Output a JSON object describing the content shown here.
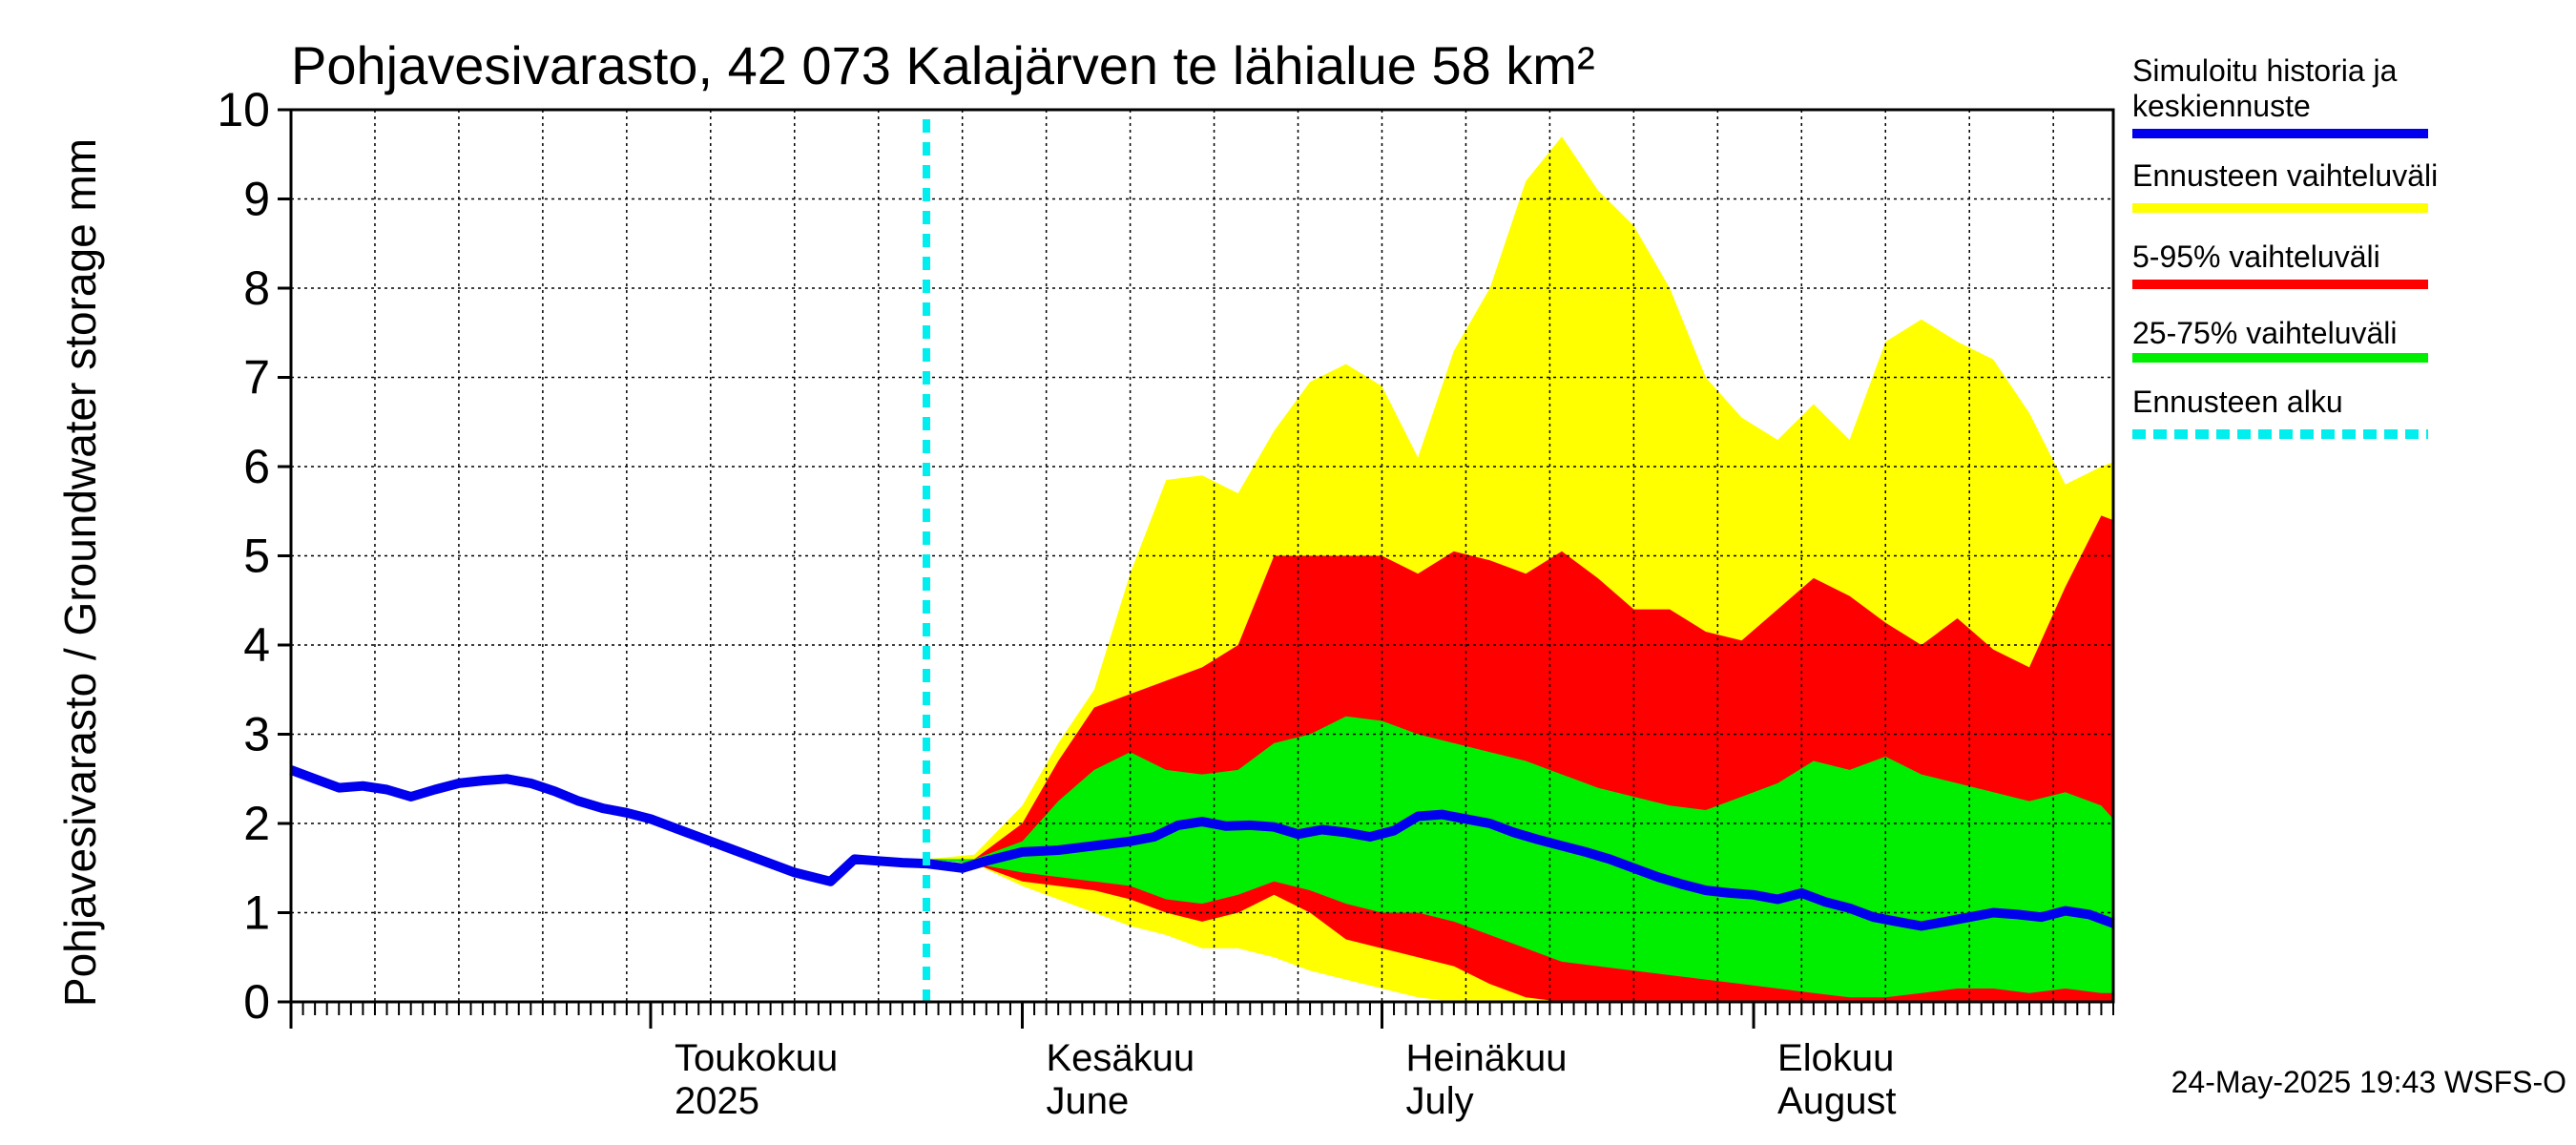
{
  "chart_data": {
    "type": "area",
    "title": "Pohjavesivarasto, 42 073 Kalajärven te lähialue 58 km²",
    "ylabel": "Pohjavesivarasto / Groundwater storage   mm",
    "ylim": [
      0,
      10
    ],
    "yticks": [
      "0",
      "1",
      "2",
      "3",
      "4",
      "5",
      "6",
      "7",
      "8",
      "9",
      "10"
    ],
    "x_start": "2025-04-01",
    "x_end": "2025-08-31",
    "grid": true,
    "forecast_start": "2025-05-24",
    "month_labels": [
      {
        "date": "2025-05-01",
        "fi": "Toukokuu",
        "en": "2025"
      },
      {
        "date": "2025-06-01",
        "fi": "Kesäkuu",
        "en": "June"
      },
      {
        "date": "2025-07-01",
        "fi": "Heinäkuu",
        "en": "July"
      },
      {
        "date": "2025-08-01",
        "fi": "Elokuu",
        "en": "August"
      }
    ],
    "legend": [
      {
        "label": "Simuloitu historia ja keskiennuste",
        "color": "#0000ee"
      },
      {
        "label": "Ennusteen vaihteluväli",
        "color": "#ffff00"
      },
      {
        "label": "5-95% vaihteluväli",
        "color": "#ff0000"
      },
      {
        "label": "25-75% vaihteluväli",
        "color": "#00ee00"
      },
      {
        "label": "Ennusteen alku",
        "color": "#00eeee"
      }
    ],
    "series": [
      {
        "name": "Ennusteen vaihteluväli",
        "color": "#ffff00",
        "points": [
          [
            "2025-05-24",
            1.6,
            1.6
          ],
          [
            "2025-05-28",
            1.55,
            1.65
          ],
          [
            "2025-06-01",
            1.3,
            2.2
          ],
          [
            "2025-06-04",
            1.15,
            2.9
          ],
          [
            "2025-06-07",
            1.0,
            3.5
          ],
          [
            "2025-06-10",
            0.85,
            4.8
          ],
          [
            "2025-06-13",
            0.75,
            5.85
          ],
          [
            "2025-06-16",
            0.6,
            5.9
          ],
          [
            "2025-06-19",
            0.6,
            5.7
          ],
          [
            "2025-06-22",
            0.5,
            6.4
          ],
          [
            "2025-06-25",
            0.35,
            6.95
          ],
          [
            "2025-06-28",
            0.25,
            7.15
          ],
          [
            "2025-07-01",
            0.15,
            6.9
          ],
          [
            "2025-07-04",
            0.05,
            6.1
          ],
          [
            "2025-07-07",
            0.0,
            7.3
          ],
          [
            "2025-07-10",
            0.0,
            8.0
          ],
          [
            "2025-07-13",
            0.0,
            9.2
          ],
          [
            "2025-07-16",
            0.0,
            9.7
          ],
          [
            "2025-07-19",
            0.0,
            9.1
          ],
          [
            "2025-07-22",
            0.0,
            8.7
          ],
          [
            "2025-07-25",
            0.0,
            8.0
          ],
          [
            "2025-07-28",
            0.0,
            7.0
          ],
          [
            "2025-07-31",
            0.0,
            6.55
          ],
          [
            "2025-08-03",
            0.0,
            6.3
          ],
          [
            "2025-08-06",
            0.0,
            6.7
          ],
          [
            "2025-08-09",
            0.0,
            6.3
          ],
          [
            "2025-08-12",
            0.0,
            7.4
          ],
          [
            "2025-08-15",
            0.0,
            7.65
          ],
          [
            "2025-08-18",
            0.0,
            7.4
          ],
          [
            "2025-08-21",
            0.0,
            7.2
          ],
          [
            "2025-08-24",
            0.0,
            6.6
          ],
          [
            "2025-08-27",
            0.0,
            5.8
          ],
          [
            "2025-08-30",
            0.0,
            6.0
          ],
          [
            "2025-08-31",
            0.0,
            6.05
          ]
        ]
      },
      {
        "name": "5-95% vaihteluväli",
        "color": "#ff0000",
        "points": [
          [
            "2025-05-24",
            1.6,
            1.6
          ],
          [
            "2025-05-28",
            1.55,
            1.6
          ],
          [
            "2025-06-01",
            1.35,
            2.0
          ],
          [
            "2025-06-04",
            1.3,
            2.7
          ],
          [
            "2025-06-07",
            1.25,
            3.3
          ],
          [
            "2025-06-10",
            1.15,
            3.45
          ],
          [
            "2025-06-13",
            1.0,
            3.6
          ],
          [
            "2025-06-16",
            0.9,
            3.75
          ],
          [
            "2025-06-19",
            1.0,
            4.0
          ],
          [
            "2025-06-22",
            1.2,
            5.0
          ],
          [
            "2025-06-25",
            1.0,
            5.0
          ],
          [
            "2025-06-28",
            0.7,
            5.0
          ],
          [
            "2025-07-01",
            0.6,
            5.0
          ],
          [
            "2025-07-04",
            0.5,
            4.8
          ],
          [
            "2025-07-07",
            0.4,
            5.05
          ],
          [
            "2025-07-10",
            0.2,
            4.95
          ],
          [
            "2025-07-13",
            0.05,
            4.8
          ],
          [
            "2025-07-16",
            0.0,
            5.05
          ],
          [
            "2025-07-19",
            0.0,
            4.75
          ],
          [
            "2025-07-22",
            0.0,
            4.4
          ],
          [
            "2025-07-25",
            0.0,
            4.4
          ],
          [
            "2025-07-28",
            0.0,
            4.15
          ],
          [
            "2025-07-31",
            0.0,
            4.05
          ],
          [
            "2025-08-03",
            0.0,
            4.4
          ],
          [
            "2025-08-06",
            0.0,
            4.75
          ],
          [
            "2025-08-09",
            0.0,
            4.55
          ],
          [
            "2025-08-12",
            0.0,
            4.25
          ],
          [
            "2025-08-15",
            0.0,
            4.0
          ],
          [
            "2025-08-18",
            0.0,
            4.3
          ],
          [
            "2025-08-21",
            0.0,
            3.95
          ],
          [
            "2025-08-24",
            0.0,
            3.75
          ],
          [
            "2025-08-27",
            0.0,
            4.65
          ],
          [
            "2025-08-30",
            0.0,
            5.45
          ],
          [
            "2025-08-31",
            0.0,
            5.4
          ]
        ]
      },
      {
        "name": "25-75% vaihteluväli",
        "color": "#00ee00",
        "points": [
          [
            "2025-05-24",
            1.6,
            1.6
          ],
          [
            "2025-05-28",
            1.55,
            1.6
          ],
          [
            "2025-06-01",
            1.45,
            1.8
          ],
          [
            "2025-06-04",
            1.4,
            2.25
          ],
          [
            "2025-06-07",
            1.35,
            2.6
          ],
          [
            "2025-06-10",
            1.3,
            2.8
          ],
          [
            "2025-06-13",
            1.15,
            2.6
          ],
          [
            "2025-06-16",
            1.1,
            2.55
          ],
          [
            "2025-06-19",
            1.2,
            2.6
          ],
          [
            "2025-06-22",
            1.35,
            2.9
          ],
          [
            "2025-06-25",
            1.25,
            3.0
          ],
          [
            "2025-06-28",
            1.1,
            3.2
          ],
          [
            "2025-07-01",
            1.0,
            3.15
          ],
          [
            "2025-07-04",
            1.0,
            3.0
          ],
          [
            "2025-07-07",
            0.9,
            2.9
          ],
          [
            "2025-07-10",
            0.75,
            2.8
          ],
          [
            "2025-07-13",
            0.6,
            2.7
          ],
          [
            "2025-07-16",
            0.45,
            2.55
          ],
          [
            "2025-07-19",
            0.4,
            2.4
          ],
          [
            "2025-07-22",
            0.35,
            2.3
          ],
          [
            "2025-07-25",
            0.3,
            2.2
          ],
          [
            "2025-07-28",
            0.25,
            2.15
          ],
          [
            "2025-07-31",
            0.2,
            2.3
          ],
          [
            "2025-08-03",
            0.15,
            2.45
          ],
          [
            "2025-08-06",
            0.1,
            2.7
          ],
          [
            "2025-08-09",
            0.05,
            2.6
          ],
          [
            "2025-08-12",
            0.05,
            2.75
          ],
          [
            "2025-08-15",
            0.1,
            2.55
          ],
          [
            "2025-08-18",
            0.15,
            2.45
          ],
          [
            "2025-08-21",
            0.15,
            2.35
          ],
          [
            "2025-08-24",
            0.1,
            2.25
          ],
          [
            "2025-08-27",
            0.15,
            2.35
          ],
          [
            "2025-08-30",
            0.1,
            2.2
          ],
          [
            "2025-08-31",
            0.1,
            2.05
          ]
        ]
      },
      {
        "name": "Simuloitu historia ja keskiennuste",
        "color": "#0000ee",
        "points": [
          [
            "2025-04-01",
            2.6
          ],
          [
            "2025-04-03",
            2.5
          ],
          [
            "2025-04-05",
            2.4
          ],
          [
            "2025-04-07",
            2.42
          ],
          [
            "2025-04-09",
            2.38
          ],
          [
            "2025-04-11",
            2.3
          ],
          [
            "2025-04-13",
            2.38
          ],
          [
            "2025-04-15",
            2.45
          ],
          [
            "2025-04-17",
            2.48
          ],
          [
            "2025-04-19",
            2.5
          ],
          [
            "2025-04-21",
            2.45
          ],
          [
            "2025-04-23",
            2.36
          ],
          [
            "2025-04-25",
            2.25
          ],
          [
            "2025-04-27",
            2.17
          ],
          [
            "2025-04-29",
            2.12
          ],
          [
            "2025-05-01",
            2.05
          ],
          [
            "2025-05-04",
            1.9
          ],
          [
            "2025-05-07",
            1.75
          ],
          [
            "2025-05-10",
            1.6
          ],
          [
            "2025-05-13",
            1.45
          ],
          [
            "2025-05-16",
            1.35
          ],
          [
            "2025-05-18",
            1.6
          ],
          [
            "2025-05-20",
            1.58
          ],
          [
            "2025-05-22",
            1.56
          ],
          [
            "2025-05-24",
            1.55
          ],
          [
            "2025-05-27",
            1.5
          ],
          [
            "2025-05-29",
            1.58
          ],
          [
            "2025-06-01",
            1.68
          ],
          [
            "2025-06-04",
            1.7
          ],
          [
            "2025-06-07",
            1.75
          ],
          [
            "2025-06-10",
            1.8
          ],
          [
            "2025-06-12",
            1.85
          ],
          [
            "2025-06-14",
            1.98
          ],
          [
            "2025-06-16",
            2.02
          ],
          [
            "2025-06-18",
            1.97
          ],
          [
            "2025-06-20",
            1.98
          ],
          [
            "2025-06-22",
            1.96
          ],
          [
            "2025-06-24",
            1.88
          ],
          [
            "2025-06-26",
            1.93
          ],
          [
            "2025-06-28",
            1.9
          ],
          [
            "2025-06-30",
            1.85
          ],
          [
            "2025-07-02",
            1.92
          ],
          [
            "2025-07-04",
            2.08
          ],
          [
            "2025-07-06",
            2.1
          ],
          [
            "2025-07-08",
            2.05
          ],
          [
            "2025-07-10",
            2.0
          ],
          [
            "2025-07-12",
            1.9
          ],
          [
            "2025-07-14",
            1.82
          ],
          [
            "2025-07-16",
            1.75
          ],
          [
            "2025-07-18",
            1.68
          ],
          [
            "2025-07-20",
            1.6
          ],
          [
            "2025-07-22",
            1.5
          ],
          [
            "2025-07-24",
            1.4
          ],
          [
            "2025-07-26",
            1.32
          ],
          [
            "2025-07-28",
            1.25
          ],
          [
            "2025-07-30",
            1.22
          ],
          [
            "2025-08-01",
            1.2
          ],
          [
            "2025-08-03",
            1.15
          ],
          [
            "2025-08-05",
            1.22
          ],
          [
            "2025-08-07",
            1.12
          ],
          [
            "2025-08-09",
            1.05
          ],
          [
            "2025-08-11",
            0.95
          ],
          [
            "2025-08-13",
            0.9
          ],
          [
            "2025-08-15",
            0.85
          ],
          [
            "2025-08-17",
            0.9
          ],
          [
            "2025-08-19",
            0.95
          ],
          [
            "2025-08-21",
            1.0
          ],
          [
            "2025-08-23",
            0.98
          ],
          [
            "2025-08-25",
            0.95
          ],
          [
            "2025-08-27",
            1.02
          ],
          [
            "2025-08-29",
            0.98
          ],
          [
            "2025-08-31",
            0.88
          ]
        ]
      }
    ]
  },
  "timestamp": "24-May-2025 19:43 WSFS-O"
}
